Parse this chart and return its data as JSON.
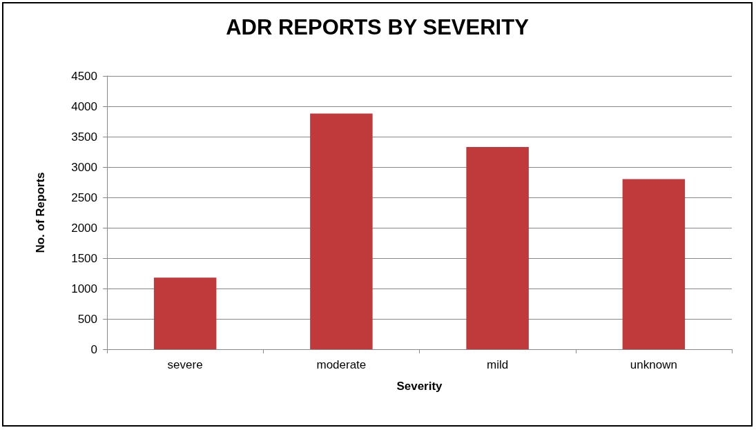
{
  "chart_data": {
    "type": "bar",
    "title": "ADR REPORTS BY SEVERITY",
    "xlabel": "Severity",
    "ylabel": "No. of Reports",
    "categories": [
      "severe",
      "moderate",
      "mild",
      "unknown"
    ],
    "values": [
      1180,
      3880,
      3330,
      2800
    ],
    "color": "#c0393b",
    "ylim": [
      0,
      4500
    ],
    "yticks": [
      0,
      500,
      1000,
      1500,
      2000,
      2500,
      3000,
      3500,
      4000,
      4500
    ],
    "grid": "y"
  }
}
